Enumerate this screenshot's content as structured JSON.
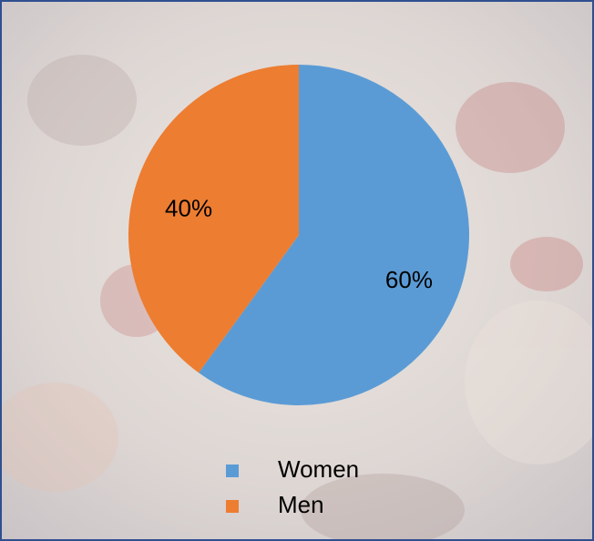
{
  "chart_data": {
    "type": "pie",
    "categories": [
      "Women",
      "Men"
    ],
    "values": [
      60,
      40
    ],
    "value_labels": [
      "60%",
      "40%"
    ],
    "colors": [
      "#5b9bd5",
      "#ed7d31"
    ],
    "legend": "bottom"
  }
}
